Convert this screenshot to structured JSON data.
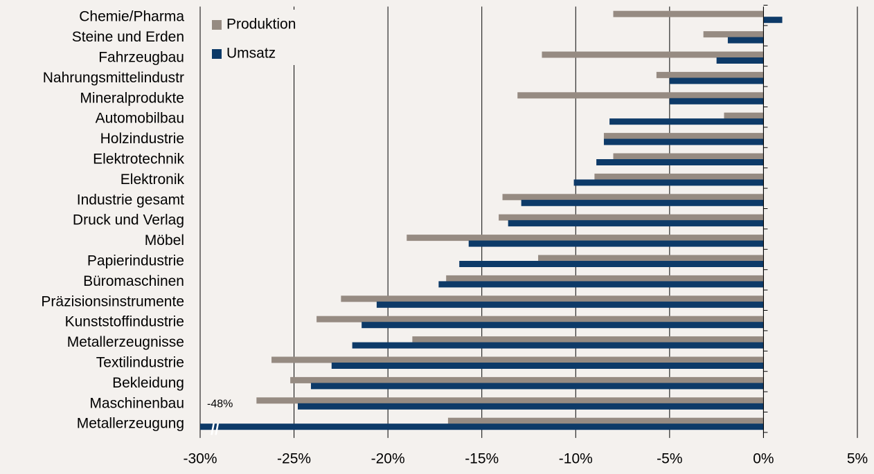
{
  "chart_data": {
    "type": "barh",
    "categories": [
      "Chemie/Pharma",
      "Steine und Erden",
      "Fahrzeugbau",
      "Nahrungsmittelindustr",
      "Mineralprodukte",
      "Automobilbau",
      "Holzindustrie",
      "Elektrotechnik",
      "Elektronik",
      "Industrie gesamt",
      "Druck und Verlag",
      "Möbel",
      "Papierindustrie",
      "Büromaschinen",
      "Präzisionsinstrumente",
      "Kunststoffindustrie",
      "Metallerzeugnisse",
      "Textilindustrie",
      "Bekleidung",
      "Maschinenbau",
      "Metallerzeugung"
    ],
    "series": [
      {
        "name": "Produktion",
        "color": "#968b82",
        "values": [
          -8.0,
          -3.2,
          -11.8,
          -5.7,
          -13.1,
          -2.1,
          -8.5,
          -8.0,
          -9.0,
          -13.9,
          -14.1,
          -19.0,
          -12.0,
          -16.9,
          -22.5,
          -23.8,
          -18.7,
          -26.2,
          -25.2,
          -27.0,
          -16.8
        ]
      },
      {
        "name": "Umsatz",
        "color": "#0d3a68",
        "values": [
          1.0,
          -1.9,
          -2.5,
          -5.0,
          -5.0,
          -8.2,
          -8.5,
          -8.9,
          -10.1,
          -12.9,
          -13.6,
          -15.7,
          -16.2,
          -17.3,
          -20.6,
          -21.4,
          -21.9,
          -23.0,
          -24.1,
          -24.8,
          -48
        ],
        "value_labels": [
          null,
          null,
          null,
          null,
          null,
          null,
          null,
          null,
          null,
          null,
          null,
          null,
          null,
          null,
          null,
          null,
          null,
          null,
          null,
          null,
          "-48%"
        ]
      }
    ],
    "xlim": [
      -30,
      5
    ],
    "xticks": [
      {
        "value": -30,
        "label": "-30%"
      },
      {
        "value": -25,
        "label": "-25%"
      },
      {
        "value": -20,
        "label": "-20%"
      },
      {
        "value": -15,
        "label": "-15%"
      },
      {
        "value": -10,
        "label": "-10%"
      },
      {
        "value": -5,
        "label": "-5%"
      },
      {
        "value": 0,
        "label": "0%"
      },
      {
        "value": 5,
        "label": "5%"
      }
    ],
    "grid": true,
    "legend": "top-left"
  }
}
